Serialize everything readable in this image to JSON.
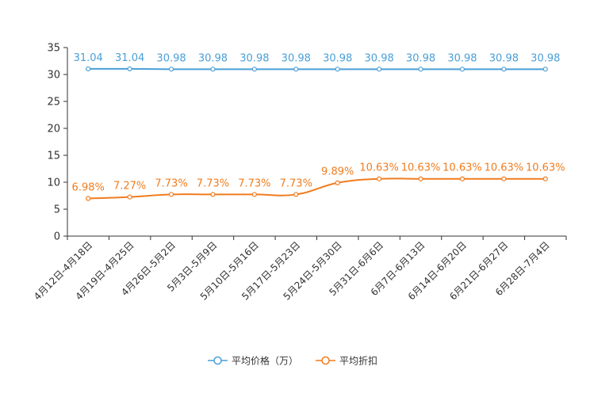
{
  "chart_data": {
    "type": "line",
    "categories": [
      "4月12日-4月18日",
      "4月19日-4月25日",
      "4月26日-5月2日",
      "5月3日-5月9日",
      "5月10日-5月16日",
      "5月17日-5月23日",
      "5月24日-5月30日",
      "5月31日-6月6日",
      "6月7日-6月13日",
      "6月14日-6月20日",
      "6月21日-6月27日",
      "6月28日-7月4日"
    ],
    "series": [
      {
        "name": "平均价格（万）",
        "color": "#4a9fd8",
        "values": [
          31.04,
          31.04,
          30.98,
          30.98,
          30.98,
          30.98,
          30.98,
          30.98,
          30.98,
          30.98,
          30.98,
          30.98
        ],
        "labels": [
          "31.04",
          "31.04",
          "30.98",
          "30.98",
          "30.98",
          "30.98",
          "30.98",
          "30.98",
          "30.98",
          "30.98",
          "30.98",
          "30.98"
        ]
      },
      {
        "name": "平均折扣",
        "color": "#f07c1e",
        "values": [
          6.98,
          7.27,
          7.73,
          7.73,
          7.73,
          7.73,
          9.89,
          10.63,
          10.63,
          10.63,
          10.63,
          10.63
        ],
        "labels": [
          "6.98%",
          "7.27%",
          "7.73%",
          "7.73%",
          "7.73%",
          "7.73%",
          "9.89%",
          "10.63%",
          "10.63%",
          "10.63%",
          "10.63%",
          "10.63%"
        ]
      }
    ],
    "yticks": [
      0,
      5,
      10,
      15,
      20,
      25,
      30,
      35
    ],
    "ylim": [
      0,
      35
    ],
    "title": "",
    "xlabel": "",
    "ylabel": "",
    "legend_position": "bottom-center"
  }
}
